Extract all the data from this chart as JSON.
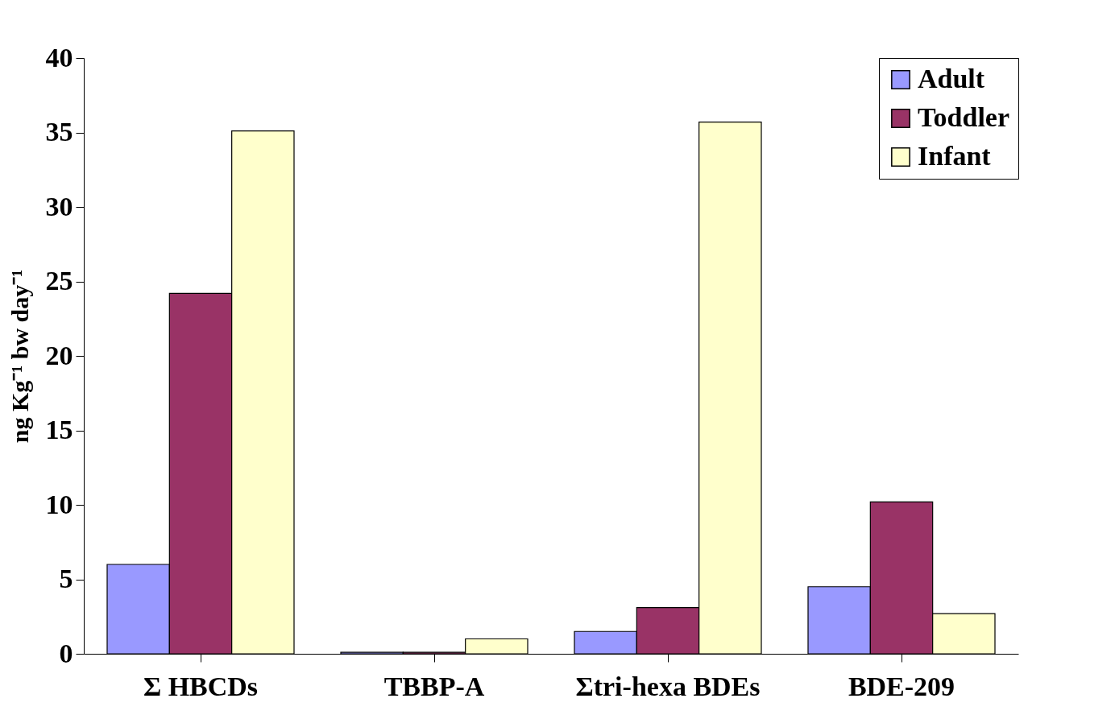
{
  "chart_data": {
    "type": "bar",
    "ylabel": "ng Kg⁻¹ bw day⁻¹",
    "categories": [
      "Σ HBCDs",
      "TBBP-A",
      "Σtri-hexa BDEs",
      "BDE-209"
    ],
    "series": [
      {
        "name": "Adult",
        "color": "#9999ff",
        "values": [
          6,
          0.1,
          1.5,
          4.5
        ]
      },
      {
        "name": "Toddler",
        "color": "#993366",
        "values": [
          24.2,
          0.1,
          3.1,
          10.2
        ]
      },
      {
        "name": "Infant",
        "color": "#ffffcc",
        "values": [
          35.1,
          1,
          35.7,
          2.7
        ]
      }
    ],
    "ylim": [
      0,
      40
    ],
    "yticks": [
      0,
      5,
      10,
      15,
      20,
      25,
      30,
      35,
      40
    ],
    "grid": false,
    "legend": "top right"
  }
}
